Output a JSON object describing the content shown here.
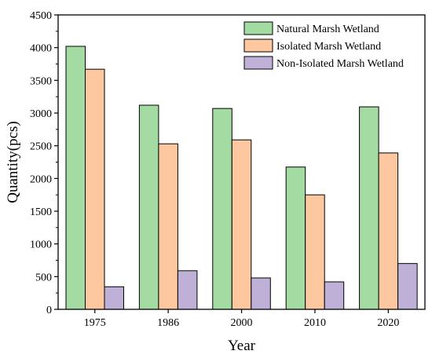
{
  "chart_data": {
    "type": "bar",
    "xlabel": "Year",
    "ylabel": "Quantity(pcs)",
    "ylim": [
      0,
      4500
    ],
    "yticks": [
      0,
      500,
      1000,
      1500,
      2000,
      2500,
      3000,
      3500,
      4000,
      4500
    ],
    "categories": [
      "1975",
      "1986",
      "2000",
      "2010",
      "2020"
    ],
    "legend_position": "top-right",
    "grid": false,
    "series": [
      {
        "name": "Natural Marsh Wetland",
        "color": "#a3dba3",
        "values": [
          4020,
          3120,
          3070,
          2175,
          3095
        ]
      },
      {
        "name": "Isolated Marsh Wetland",
        "color": "#fdc8a0",
        "values": [
          3670,
          2530,
          2590,
          1750,
          2390
        ]
      },
      {
        "name": "Non-Isolated Marsh Wetland",
        "color": "#bfb0d8",
        "values": [
          345,
          590,
          480,
          420,
          700
        ]
      }
    ]
  }
}
